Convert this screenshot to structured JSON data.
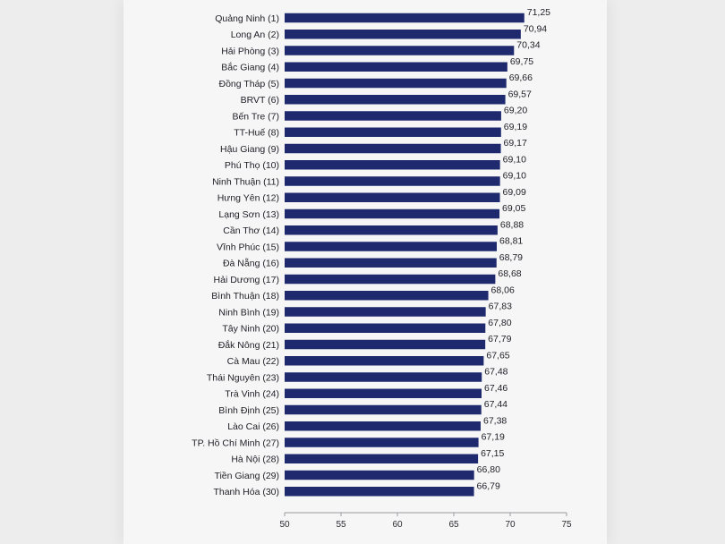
{
  "chart_data": {
    "type": "bar",
    "orientation": "horizontal",
    "title": "",
    "xlabel": "",
    "ylabel": "",
    "xlim": [
      50,
      75
    ],
    "xticks": [
      50,
      55,
      60,
      65,
      70,
      75
    ],
    "grid": false,
    "bar_color": "#1f2a6e",
    "categories": [
      "Quảng Ninh (1)",
      "Long An (2)",
      "Hải Phòng (3)",
      "Bắc Giang (4)",
      "Đồng Tháp (5)",
      "BRVT (6)",
      "Bến Tre (7)",
      "TT-Huế (8)",
      "Hậu Giang (9)",
      "Phú Thọ (10)",
      "Ninh Thuận (11)",
      "Hưng Yên (12)",
      "Lạng Sơn (13)",
      "Cần Thơ (14)",
      "Vĩnh Phúc (15)",
      "Đà Nẵng (16)",
      "Hải Dương (17)",
      "Bình Thuận (18)",
      "Ninh Bình (19)",
      "Tây Ninh (20)",
      "Đắk Nông (21)",
      "Cà Mau (22)",
      "Thái Nguyên (23)",
      "Trà Vinh (24)",
      "Bình Định (25)",
      "Lào Cai (26)",
      "TP. Hồ Chí Minh (27)",
      "Hà Nội (28)",
      "Tiền Giang (29)",
      "Thanh Hóa (30)"
    ],
    "values": [
      71.25,
      70.94,
      70.34,
      69.75,
      69.66,
      69.57,
      69.2,
      69.19,
      69.17,
      69.1,
      69.1,
      69.09,
      69.05,
      68.88,
      68.81,
      68.79,
      68.68,
      68.06,
      67.83,
      67.8,
      67.79,
      67.65,
      67.48,
      67.46,
      67.44,
      67.38,
      67.19,
      67.15,
      66.8,
      66.79
    ],
    "value_labels": [
      "71,25",
      "70,94",
      "70,34",
      "69,75",
      "69,66",
      "69,57",
      "69,20",
      "69,19",
      "69,17",
      "69,10",
      "69,10",
      "69,09",
      "69,05",
      "68,88",
      "68,81",
      "68,79",
      "68,68",
      "68,06",
      "67,83",
      "67,80",
      "67,79",
      "67,65",
      "67,48",
      "67,46",
      "67,44",
      "67,38",
      "67,19",
      "67,15",
      "66,80",
      "66,79"
    ]
  }
}
